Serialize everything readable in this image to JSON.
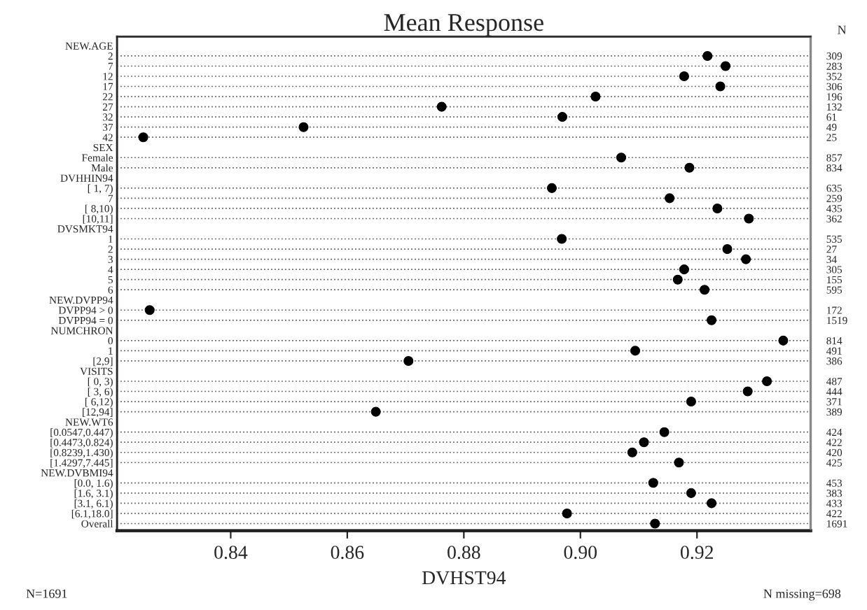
{
  "chart_data": {
    "type": "scatter",
    "orientation": "horizontal",
    "title": "Mean Response",
    "xlabel": "DVHST94",
    "y2label": "N",
    "categories": [
      "NEW.AGE",
      "2",
      "7",
      "12",
      "17",
      "22",
      "27",
      "32",
      "37",
      "42",
      "SEX",
      "Female",
      "Male",
      "DVHHIN94",
      "[ 1, 7)",
      "7",
      "[ 8,10)",
      "[10,11]",
      "DVSMKT94",
      "1",
      "2",
      "3",
      "4",
      "5",
      "6",
      "NEW.DVPP94",
      "DVPP94 > 0",
      "DVPP94 = 0",
      "NUMCHRON",
      "0",
      "1",
      "[2,9]",
      "VISITS",
      "[ 0, 3)",
      "[ 3, 6)",
      "[ 6,12)",
      "[12,94]",
      "NEW.WT6",
      "[0.0547,0.447)",
      "[0.4473,0.824)",
      "[0.8239,1.430)",
      "[1.4297,7.445]",
      "NEW.DVBMI94",
      "[0.0, 1.6)",
      "[1.6, 3.1)",
      "[3.1, 6.1)",
      "[6.1,18.0]",
      "Overall"
    ],
    "values": [
      null,
      0.9218,
      0.9249,
      0.9178,
      0.924,
      0.9026,
      0.8762,
      0.8969,
      0.8525,
      0.825,
      null,
      0.907,
      0.9187,
      null,
      0.8951,
      0.9153,
      0.9235,
      0.9289,
      null,
      0.8968,
      0.9252,
      0.9284,
      0.9178,
      0.9167,
      0.9213,
      null,
      0.8261,
      0.9225,
      null,
      0.9348,
      0.9094,
      0.8705,
      null,
      0.932,
      0.9287,
      0.919,
      0.8649,
      null,
      0.9144,
      0.9109,
      0.9089,
      0.9169,
      null,
      0.9125,
      0.919,
      0.9225,
      0.8977,
      0.9128
    ],
    "y2_categories": [
      null,
      "309",
      "283",
      "352",
      "306",
      "196",
      "132",
      "61",
      "49",
      "25",
      null,
      "857",
      "834",
      null,
      "635",
      "259",
      "435",
      "362",
      null,
      "535",
      "27",
      "34",
      "305",
      "155",
      "595",
      null,
      "172",
      "1519",
      null,
      "814",
      "491",
      "386",
      null,
      "487",
      "444",
      "371",
      "389",
      null,
      "424",
      "422",
      "420",
      "425",
      null,
      "453",
      "383",
      "433",
      "422",
      "1691"
    ],
    "color": "#000000",
    "marker": "circle",
    "grid": "y",
    "xlim": [
      0.8205,
      0.9395
    ],
    "xticks": [
      0.84,
      0.86,
      0.88,
      {
        "value": 0.9,
        "label": "0.90"
      },
      0.92
    ],
    "annotations": [
      "N=1691",
      "N missing=698"
    ]
  }
}
